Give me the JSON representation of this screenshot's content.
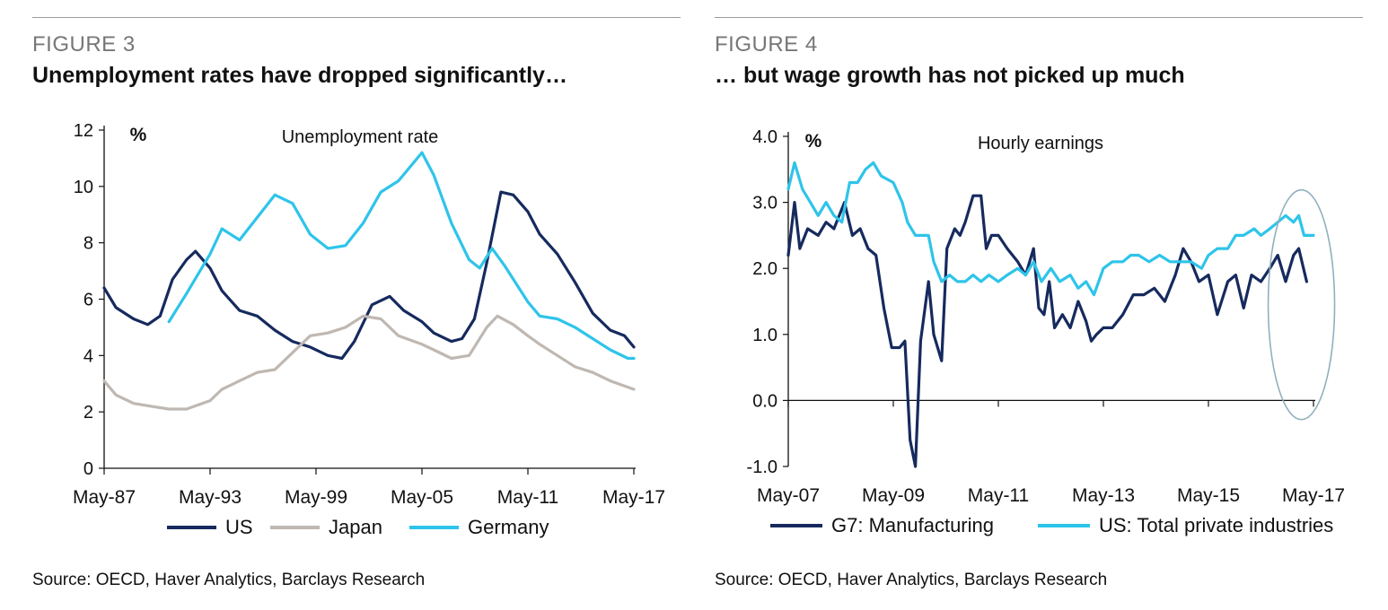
{
  "left_panel": {
    "figure_label": "FIGURE 3",
    "title": "Unemployment rates have dropped significantly…",
    "source": "Source:  OECD, Haver Analytics, Barclays Research"
  },
  "right_panel": {
    "figure_label": "FIGURE 4",
    "title": "… but wage growth has not picked up much",
    "source": "Source: OECD, Haver Analytics, Barclays Research"
  },
  "chart_data": [
    {
      "type": "line",
      "title": "Unemployment rate",
      "unit_label": "%",
      "xlabel": "",
      "ylabel": "",
      "ylim": [
        0,
        12
      ],
      "yticks": [
        "0",
        "2",
        "4",
        "6",
        "8",
        "10",
        "12"
      ],
      "xlim": [
        1987.33,
        2017.33
      ],
      "xticks": [
        {
          "label": "May-87",
          "x": 1987.33
        },
        {
          "label": "May-93",
          "x": 1993.33
        },
        {
          "label": "May-99",
          "x": 1999.33
        },
        {
          "label": "May-05",
          "x": 2005.33
        },
        {
          "label": "May-11",
          "x": 2011.33
        },
        {
          "label": "May-17",
          "x": 2017.33
        }
      ],
      "grid": false,
      "legend_position": "bottom",
      "series": [
        {
          "name": "US",
          "color": "#162a5e",
          "points": [
            [
              1987.33,
              6.4
            ],
            [
              1988.0,
              5.7
            ],
            [
              1989.0,
              5.3
            ],
            [
              1989.8,
              5.1
            ],
            [
              1990.5,
              5.4
            ],
            [
              1991.2,
              6.7
            ],
            [
              1992.0,
              7.4
            ],
            [
              1992.5,
              7.7
            ],
            [
              1993.33,
              7.1
            ],
            [
              1994.0,
              6.3
            ],
            [
              1995.0,
              5.6
            ],
            [
              1996.0,
              5.4
            ],
            [
              1997.0,
              4.9
            ],
            [
              1998.0,
              4.5
            ],
            [
              1999.0,
              4.3
            ],
            [
              2000.0,
              4.0
            ],
            [
              2000.8,
              3.9
            ],
            [
              2001.5,
              4.5
            ],
            [
              2002.5,
              5.8
            ],
            [
              2003.5,
              6.1
            ],
            [
              2004.3,
              5.6
            ],
            [
              2005.33,
              5.2
            ],
            [
              2006.0,
              4.8
            ],
            [
              2007.0,
              4.5
            ],
            [
              2007.6,
              4.6
            ],
            [
              2008.3,
              5.3
            ],
            [
              2009.0,
              7.3
            ],
            [
              2009.8,
              9.8
            ],
            [
              2010.5,
              9.7
            ],
            [
              2011.33,
              9.1
            ],
            [
              2012.0,
              8.3
            ],
            [
              2013.0,
              7.6
            ],
            [
              2014.0,
              6.6
            ],
            [
              2015.0,
              5.5
            ],
            [
              2016.0,
              4.9
            ],
            [
              2016.8,
              4.7
            ],
            [
              2017.33,
              4.3
            ]
          ]
        },
        {
          "name": "Japan",
          "color": "#bfb8b2",
          "points": [
            [
              1987.33,
              3.1
            ],
            [
              1988.0,
              2.6
            ],
            [
              1989.0,
              2.3
            ],
            [
              1990.0,
              2.2
            ],
            [
              1991.0,
              2.1
            ],
            [
              1992.0,
              2.1
            ],
            [
              1993.33,
              2.4
            ],
            [
              1994.0,
              2.8
            ],
            [
              1995.0,
              3.1
            ],
            [
              1996.0,
              3.4
            ],
            [
              1997.0,
              3.5
            ],
            [
              1998.0,
              4.1
            ],
            [
              1999.0,
              4.7
            ],
            [
              2000.0,
              4.8
            ],
            [
              2001.0,
              5.0
            ],
            [
              2002.0,
              5.4
            ],
            [
              2003.0,
              5.3
            ],
            [
              2004.0,
              4.7
            ],
            [
              2005.33,
              4.4
            ],
            [
              2006.0,
              4.2
            ],
            [
              2007.0,
              3.9
            ],
            [
              2008.0,
              4.0
            ],
            [
              2009.0,
              5.0
            ],
            [
              2009.6,
              5.4
            ],
            [
              2010.5,
              5.1
            ],
            [
              2011.33,
              4.7
            ],
            [
              2012.0,
              4.4
            ],
            [
              2013.0,
              4.0
            ],
            [
              2014.0,
              3.6
            ],
            [
              2015.0,
              3.4
            ],
            [
              2016.0,
              3.1
            ],
            [
              2017.33,
              2.8
            ]
          ]
        },
        {
          "name": "Germany",
          "color": "#2ec4ea",
          "points": [
            [
              1991.0,
              5.2
            ],
            [
              1992.0,
              6.2
            ],
            [
              1993.33,
              7.6
            ],
            [
              1994.0,
              8.5
            ],
            [
              1995.0,
              8.1
            ],
            [
              1996.0,
              8.9
            ],
            [
              1997.0,
              9.7
            ],
            [
              1998.0,
              9.4
            ],
            [
              1999.0,
              8.3
            ],
            [
              2000.0,
              7.8
            ],
            [
              2001.0,
              7.9
            ],
            [
              2002.0,
              8.7
            ],
            [
              2003.0,
              9.8
            ],
            [
              2004.0,
              10.2
            ],
            [
              2005.33,
              11.2
            ],
            [
              2006.0,
              10.4
            ],
            [
              2007.0,
              8.7
            ],
            [
              2008.0,
              7.4
            ],
            [
              2008.6,
              7.1
            ],
            [
              2009.3,
              7.8
            ],
            [
              2010.0,
              7.2
            ],
            [
              2011.33,
              5.9
            ],
            [
              2012.0,
              5.4
            ],
            [
              2013.0,
              5.3
            ],
            [
              2014.0,
              5.0
            ],
            [
              2015.0,
              4.6
            ],
            [
              2016.0,
              4.2
            ],
            [
              2017.0,
              3.9
            ],
            [
              2017.33,
              3.9
            ]
          ]
        }
      ]
    },
    {
      "type": "line",
      "title": "Hourly earnings",
      "unit_label": "%",
      "xlabel": "",
      "ylabel": "",
      "ylim": [
        -1.0,
        4.0
      ],
      "yticks": [
        "-1.0",
        "0.0",
        "1.0",
        "2.0",
        "3.0",
        "4.0"
      ],
      "xlim": [
        2007.33,
        2017.33
      ],
      "xticks": [
        {
          "label": "May-07",
          "x": 2007.33
        },
        {
          "label": "May-09",
          "x": 2009.33
        },
        {
          "label": "May-11",
          "x": 2011.33
        },
        {
          "label": "May-13",
          "x": 2013.33
        },
        {
          "label": "May-15",
          "x": 2015.33
        },
        {
          "label": "May-17",
          "x": 2017.33
        }
      ],
      "grid": false,
      "legend_position": "bottom",
      "annotation": "ellipse highlighting latest values",
      "series": [
        {
          "name": "G7: Manufacturing",
          "color": "#162a5e",
          "points": [
            [
              2007.33,
              2.2
            ],
            [
              2007.45,
              3.0
            ],
            [
              2007.55,
              2.3
            ],
            [
              2007.7,
              2.6
            ],
            [
              2007.9,
              2.5
            ],
            [
              2008.05,
              2.7
            ],
            [
              2008.2,
              2.6
            ],
            [
              2008.4,
              3.0
            ],
            [
              2008.55,
              2.5
            ],
            [
              2008.7,
              2.6
            ],
            [
              2008.85,
              2.3
            ],
            [
              2009.0,
              2.2
            ],
            [
              2009.15,
              1.4
            ],
            [
              2009.3,
              0.8
            ],
            [
              2009.45,
              0.8
            ],
            [
              2009.55,
              0.9
            ],
            [
              2009.65,
              -0.6
            ],
            [
              2009.75,
              -1.0
            ],
            [
              2009.85,
              0.9
            ],
            [
              2010.0,
              1.8
            ],
            [
              2010.1,
              1.0
            ],
            [
              2010.25,
              0.6
            ],
            [
              2010.35,
              2.3
            ],
            [
              2010.5,
              2.6
            ],
            [
              2010.6,
              2.5
            ],
            [
              2010.7,
              2.7
            ],
            [
              2010.85,
              3.1
            ],
            [
              2011.0,
              3.1
            ],
            [
              2011.1,
              2.3
            ],
            [
              2011.2,
              2.5
            ],
            [
              2011.33,
              2.5
            ],
            [
              2011.5,
              2.3
            ],
            [
              2011.7,
              2.1
            ],
            [
              2011.85,
              1.9
            ],
            [
              2012.0,
              2.3
            ],
            [
              2012.1,
              1.4
            ],
            [
              2012.2,
              1.3
            ],
            [
              2012.3,
              1.8
            ],
            [
              2012.4,
              1.1
            ],
            [
              2012.55,
              1.3
            ],
            [
              2012.7,
              1.1
            ],
            [
              2012.85,
              1.5
            ],
            [
              2013.0,
              1.2
            ],
            [
              2013.1,
              0.9
            ],
            [
              2013.2,
              1.0
            ],
            [
              2013.33,
              1.1
            ],
            [
              2013.5,
              1.1
            ],
            [
              2013.7,
              1.3
            ],
            [
              2013.9,
              1.6
            ],
            [
              2014.1,
              1.6
            ],
            [
              2014.3,
              1.7
            ],
            [
              2014.5,
              1.5
            ],
            [
              2014.7,
              1.9
            ],
            [
              2014.85,
              2.3
            ],
            [
              2015.0,
              2.1
            ],
            [
              2015.15,
              1.8
            ],
            [
              2015.33,
              1.9
            ],
            [
              2015.5,
              1.3
            ],
            [
              2015.7,
              1.8
            ],
            [
              2015.85,
              1.9
            ],
            [
              2016.0,
              1.4
            ],
            [
              2016.15,
              1.9
            ],
            [
              2016.33,
              1.8
            ],
            [
              2016.5,
              2.0
            ],
            [
              2016.65,
              2.2
            ],
            [
              2016.8,
              1.8
            ],
            [
              2016.95,
              2.2
            ],
            [
              2017.05,
              2.3
            ],
            [
              2017.2,
              1.8
            ]
          ]
        },
        {
          "name": "US: Total private industries",
          "color": "#2ec4ea",
          "points": [
            [
              2007.33,
              3.2
            ],
            [
              2007.45,
              3.6
            ],
            [
              2007.6,
              3.2
            ],
            [
              2007.75,
              3.0
            ],
            [
              2007.9,
              2.8
            ],
            [
              2008.05,
              3.0
            ],
            [
              2008.2,
              2.8
            ],
            [
              2008.35,
              2.7
            ],
            [
              2008.5,
              3.3
            ],
            [
              2008.65,
              3.3
            ],
            [
              2008.8,
              3.5
            ],
            [
              2008.95,
              3.6
            ],
            [
              2009.1,
              3.4
            ],
            [
              2009.33,
              3.3
            ],
            [
              2009.5,
              3.0
            ],
            [
              2009.6,
              2.7
            ],
            [
              2009.75,
              2.5
            ],
            [
              2009.9,
              2.5
            ],
            [
              2010.0,
              2.5
            ],
            [
              2010.1,
              2.1
            ],
            [
              2010.25,
              1.8
            ],
            [
              2010.4,
              1.9
            ],
            [
              2010.55,
              1.8
            ],
            [
              2010.7,
              1.8
            ],
            [
              2010.85,
              1.9
            ],
            [
              2011.0,
              1.8
            ],
            [
              2011.15,
              1.9
            ],
            [
              2011.33,
              1.8
            ],
            [
              2011.5,
              1.9
            ],
            [
              2011.7,
              2.0
            ],
            [
              2011.85,
              1.9
            ],
            [
              2012.0,
              2.1
            ],
            [
              2012.15,
              1.8
            ],
            [
              2012.33,
              2.0
            ],
            [
              2012.5,
              1.8
            ],
            [
              2012.7,
              1.9
            ],
            [
              2012.85,
              1.7
            ],
            [
              2013.0,
              1.8
            ],
            [
              2013.15,
              1.6
            ],
            [
              2013.33,
              2.0
            ],
            [
              2013.5,
              2.1
            ],
            [
              2013.7,
              2.1
            ],
            [
              2013.85,
              2.2
            ],
            [
              2014.0,
              2.2
            ],
            [
              2014.2,
              2.1
            ],
            [
              2014.4,
              2.2
            ],
            [
              2014.6,
              2.1
            ],
            [
              2014.8,
              2.1
            ],
            [
              2015.0,
              2.1
            ],
            [
              2015.2,
              2.0
            ],
            [
              2015.33,
              2.2
            ],
            [
              2015.5,
              2.3
            ],
            [
              2015.7,
              2.3
            ],
            [
              2015.85,
              2.5
            ],
            [
              2016.0,
              2.5
            ],
            [
              2016.2,
              2.6
            ],
            [
              2016.33,
              2.5
            ],
            [
              2016.5,
              2.6
            ],
            [
              2016.65,
              2.7
            ],
            [
              2016.8,
              2.8
            ],
            [
              2016.95,
              2.7
            ],
            [
              2017.05,
              2.8
            ],
            [
              2017.15,
              2.5
            ],
            [
              2017.33,
              2.5
            ]
          ]
        }
      ]
    }
  ]
}
